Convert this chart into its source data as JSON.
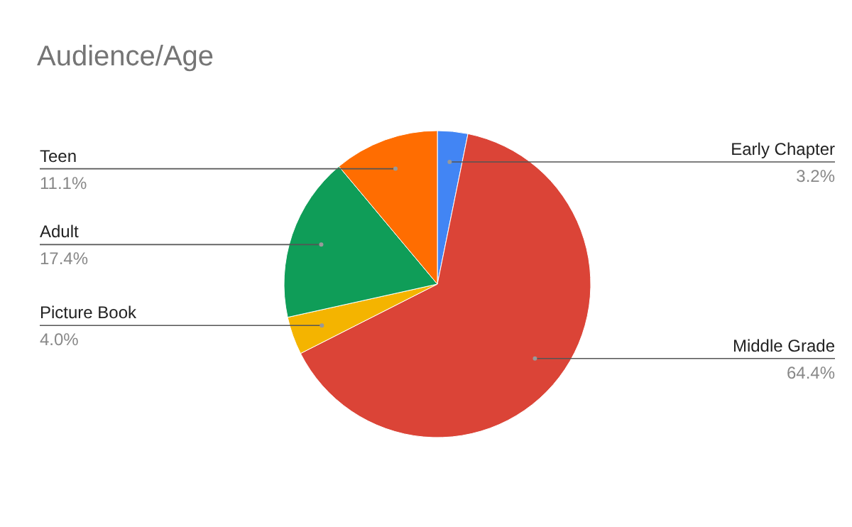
{
  "chart_data": {
    "type": "pie",
    "title": "Audience/Age",
    "categories": [
      "Early Chapter",
      "Middle Grade",
      "Picture Book",
      "Adult",
      "Teen"
    ],
    "values": [
      3.2,
      64.4,
      4.0,
      17.4,
      11.1
    ],
    "colors": [
      "#4285f4",
      "#db4437",
      "#f4b400",
      "#0f9d58",
      "#ff6d01"
    ],
    "value_labels": [
      "3.2%",
      "64.4%",
      "4.0%",
      "17.4%",
      "11.1%"
    ],
    "legend": false
  }
}
